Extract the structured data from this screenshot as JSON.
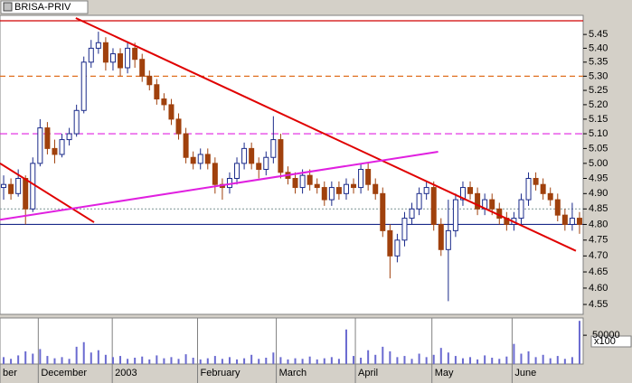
{
  "chart_data": {
    "type": "candlestick",
    "title": "BRISA-PRIV",
    "log_scale": true,
    "up_color": "#ffffff",
    "up_edge": "#1a2a8a",
    "down_color": "#a0410d",
    "ylim": [
      4.52,
      5.52
    ],
    "yticks": [
      4.55,
      {
        "value": 4.6,
        "label": "4.60"
      },
      4.65,
      {
        "value": 4.7,
        "label": "4.70"
      },
      4.75,
      {
        "value": 4.8,
        "label": "4.80"
      },
      4.85,
      {
        "value": 4.9,
        "label": "4.90"
      },
      4.95,
      {
        "value": 5,
        "label": "5.00"
      },
      5.05,
      {
        "value": 5.1,
        "label": "5.10"
      },
      5.15,
      {
        "value": 5.2,
        "label": "5.20"
      },
      5.25,
      {
        "value": 5.3,
        "label": "5.30"
      },
      5.35,
      {
        "value": 5.4,
        "label": "5.40"
      },
      5.45
    ],
    "xlim": [
      -0.5,
      79.5
    ],
    "xticks": [
      {
        "value": -0.5,
        "label": "ber"
      },
      {
        "value": 4.75,
        "label": "December"
      },
      {
        "value": 14.9,
        "label": "2003"
      },
      {
        "value": 26.6,
        "label": "February"
      },
      {
        "value": 37.4,
        "label": "March"
      },
      {
        "value": 48.25,
        "label": "April"
      },
      {
        "value": 58.75,
        "label": "May"
      },
      {
        "value": 69.75,
        "label": "June"
      }
    ],
    "levels": [
      {
        "value": 5.5,
        "color": "#d00000",
        "dash": "none"
      },
      {
        "value": 5.3,
        "color": "#e07020",
        "dash": "6 4"
      },
      {
        "value": 5.1,
        "color": "#e020e0",
        "dash": "8 4"
      },
      {
        "value": 4.85,
        "color": "#8aa0a0",
        "dash": "2 2"
      },
      {
        "value": 4.8,
        "color": "#1a2a8a",
        "dash": "none"
      }
    ],
    "trendlines": [
      {
        "color": "#e00000",
        "points": [
          [
            9.9,
            5.51
          ],
          [
            78.5,
            4.716
          ]
        ]
      },
      {
        "color": "#e00000",
        "points": [
          [
            -0.5,
            5.0
          ],
          [
            12.4,
            4.807
          ]
        ]
      },
      {
        "color": "#e020e0",
        "points": [
          [
            -0.5,
            4.815
          ],
          [
            59.6,
            5.039
          ]
        ]
      }
    ],
    "ohlc": [
      [
        4.92,
        4.96,
        4.88,
        4.93
      ],
      [
        4.93,
        4.95,
        4.88,
        4.9
      ],
      [
        4.9,
        4.98,
        4.89,
        4.95
      ],
      [
        4.95,
        4.96,
        4.8,
        4.85
      ],
      [
        4.85,
        5.02,
        4.84,
        5.0
      ],
      [
        5.0,
        5.15,
        4.99,
        5.12
      ],
      [
        5.12,
        5.14,
        5.03,
        5.05
      ],
      [
        5.05,
        5.08,
        5.0,
        5.03
      ],
      [
        5.03,
        5.1,
        5.02,
        5.08
      ],
      [
        5.08,
        5.12,
        5.06,
        5.1
      ],
      [
        5.1,
        5.2,
        5.09,
        5.18
      ],
      [
        5.18,
        5.37,
        5.17,
        5.35
      ],
      [
        5.35,
        5.43,
        5.33,
        5.4
      ],
      [
        5.4,
        5.46,
        5.38,
        5.42
      ],
      [
        5.42,
        5.44,
        5.32,
        5.35
      ],
      [
        5.35,
        5.4,
        5.32,
        5.38
      ],
      [
        5.38,
        5.4,
        5.3,
        5.33
      ],
      [
        5.33,
        5.42,
        5.31,
        5.4
      ],
      [
        5.4,
        5.42,
        5.33,
        5.36
      ],
      [
        5.36,
        5.38,
        5.28,
        5.3
      ],
      [
        5.3,
        5.32,
        5.25,
        5.27
      ],
      [
        5.27,
        5.29,
        5.2,
        5.22
      ],
      [
        5.22,
        5.24,
        5.18,
        5.2
      ],
      [
        5.2,
        5.22,
        5.13,
        5.15
      ],
      [
        5.15,
        5.17,
        5.08,
        5.1
      ],
      [
        5.1,
        5.12,
        5.0,
        5.02
      ],
      [
        5.02,
        5.04,
        4.98,
        5.0
      ],
      [
        5.0,
        5.05,
        4.98,
        5.03
      ],
      [
        5.03,
        5.05,
        4.98,
        5.0
      ],
      [
        5.0,
        5.02,
        4.9,
        4.93
      ],
      [
        4.93,
        4.95,
        4.88,
        4.92
      ],
      [
        4.92,
        4.97,
        4.9,
        4.95
      ],
      [
        4.95,
        5.02,
        4.93,
        5.0
      ],
      [
        5.0,
        5.07,
        4.98,
        5.05
      ],
      [
        5.05,
        5.07,
        4.98,
        5.0
      ],
      [
        5.0,
        5.02,
        4.95,
        4.98
      ],
      [
        4.98,
        5.04,
        4.96,
        5.02
      ],
      [
        5.02,
        5.16,
        5.0,
        5.08
      ],
      [
        5.08,
        5.1,
        4.95,
        4.97
      ],
      [
        4.97,
        4.99,
        4.93,
        4.95
      ],
      [
        4.95,
        4.97,
        4.9,
        4.92
      ],
      [
        4.92,
        4.98,
        4.9,
        4.96
      ],
      [
        4.96,
        4.98,
        4.91,
        4.93
      ],
      [
        4.93,
        4.95,
        4.9,
        4.92
      ],
      [
        4.92,
        4.94,
        4.86,
        4.88
      ],
      [
        4.88,
        4.94,
        4.86,
        4.92
      ],
      [
        4.92,
        4.94,
        4.88,
        4.9
      ],
      [
        4.9,
        4.95,
        4.88,
        4.93
      ],
      [
        4.93,
        4.95,
        4.9,
        4.92
      ],
      [
        4.92,
        5.0,
        4.9,
        4.98
      ],
      [
        4.98,
        5.0,
        4.91,
        4.93
      ],
      [
        4.93,
        4.95,
        4.88,
        4.9
      ],
      [
        4.9,
        4.92,
        4.76,
        4.78
      ],
      [
        4.78,
        4.8,
        4.63,
        4.7
      ],
      [
        4.7,
        4.77,
        4.68,
        4.75
      ],
      [
        4.75,
        4.84,
        4.73,
        4.82
      ],
      [
        4.82,
        4.87,
        4.8,
        4.85
      ],
      [
        4.85,
        4.92,
        4.83,
        4.9
      ],
      [
        4.9,
        4.94,
        4.88,
        4.92
      ],
      [
        4.92,
        4.94,
        4.78,
        4.8
      ],
      [
        4.8,
        4.82,
        4.7,
        4.72
      ],
      [
        4.72,
        4.88,
        4.56,
        4.78
      ],
      [
        4.78,
        4.9,
        4.76,
        4.88
      ],
      [
        4.88,
        4.94,
        4.86,
        4.92
      ],
      [
        4.92,
        4.94,
        4.88,
        4.9
      ],
      [
        4.9,
        4.92,
        4.83,
        4.85
      ],
      [
        4.85,
        4.9,
        4.83,
        4.88
      ],
      [
        4.88,
        4.9,
        4.83,
        4.85
      ],
      [
        4.85,
        4.87,
        4.8,
        4.82
      ],
      [
        4.82,
        4.84,
        4.78,
        4.8
      ],
      [
        4.8,
        4.84,
        4.78,
        4.82
      ],
      [
        4.82,
        4.9,
        4.8,
        4.88
      ],
      [
        4.88,
        4.97,
        4.86,
        4.95
      ],
      [
        4.95,
        4.97,
        4.91,
        4.93
      ],
      [
        4.93,
        4.95,
        4.88,
        4.9
      ],
      [
        4.9,
        4.92,
        4.86,
        4.88
      ],
      [
        4.88,
        4.9,
        4.81,
        4.83
      ],
      [
        4.83,
        4.85,
        4.78,
        4.8
      ],
      [
        4.8,
        4.87,
        4.78,
        4.82
      ],
      [
        4.82,
        4.84,
        4.77,
        4.8
      ]
    ],
    "volume_color": "#6a6ad0",
    "volume_ylim": [
      0,
      80000
    ],
    "volume_yticks": [
      50000
    ],
    "volume_unit": "x100",
    "volume": [
      12000,
      9000,
      15000,
      22000,
      18000,
      26000,
      14000,
      10000,
      12000,
      9000,
      30000,
      38000,
      20000,
      24000,
      16000,
      12000,
      14000,
      9000,
      11000,
      13000,
      8000,
      15000,
      10000,
      12000,
      9000,
      17000,
      11000,
      8000,
      10000,
      14000,
      9000,
      12000,
      8000,
      10000,
      16000,
      9000,
      11000,
      20000,
      12000,
      8000,
      10000,
      9000,
      13000,
      8000,
      10000,
      12000,
      9000,
      60000,
      14000,
      11000,
      24000,
      16000,
      30000,
      22000,
      12000,
      14000,
      9000,
      18000,
      12000,
      16000,
      28000,
      20000,
      14000,
      10000,
      12000,
      8000,
      15000,
      11000,
      9000,
      13000,
      35000,
      18000,
      22000,
      12000,
      16000,
      10000,
      14000,
      9000,
      12000,
      75000
    ]
  }
}
